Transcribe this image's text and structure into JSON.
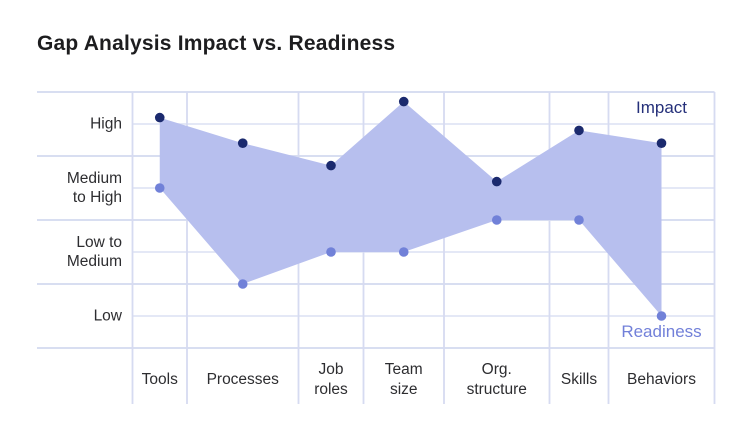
{
  "title": "Gap Analysis Impact vs. Readiness",
  "legend": {
    "impact": "Impact",
    "readiness": "Readiness"
  },
  "colors": {
    "impact_dot": "#1b2a6e",
    "readiness_dot": "#7181d8",
    "band_fill": "#b7bfee",
    "grid_major": "#d3d9ef",
    "grid_minor": "#e1e5f5",
    "grid_vertical": "#d6dbf1",
    "title_text": "#1d1d1f",
    "axis_text": "#2d2d30",
    "impact_label_text": "#25307a",
    "readiness_label_text": "#7280d9"
  },
  "y_axis_labels": [
    "High",
    "Medium\nto High",
    "Low to\nMedium",
    "Low"
  ],
  "x_axis_labels": [
    "Tools",
    "Processes",
    "Job\nroles",
    "Team\nsize",
    "Org.\nstructure",
    "Skills",
    "Behaviors"
  ],
  "chart_data": {
    "type": "area",
    "subtype": "range-band-between-two-lines",
    "title": "Gap Analysis Impact vs. Readiness",
    "categories": [
      "Tools",
      "Processes",
      "Job roles",
      "Team size",
      "Org. structure",
      "Skills",
      "Behaviors"
    ],
    "y_level_scale": {
      "0": "Low",
      "1": "Low to Medium",
      "2": "Medium to High",
      "3": "High"
    },
    "series": [
      {
        "name": "Impact",
        "values": [
          3.1,
          2.7,
          2.35,
          3.35,
          2.1,
          2.9,
          2.7
        ]
      },
      {
        "name": "Readiness",
        "values": [
          2.0,
          0.5,
          1.0,
          1.0,
          1.5,
          1.5,
          0.0
        ]
      }
    ],
    "ylim": [
      -0.5,
      3.5
    ],
    "grid": true,
    "legend_position": "inline-right: Impact top, Readiness bottom"
  }
}
